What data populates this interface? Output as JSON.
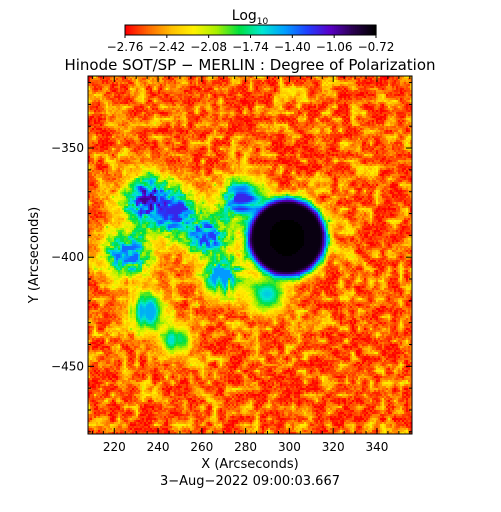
{
  "chart_data": {
    "type": "heatmap",
    "title": "Hinode SOT/SP − MERLIN : Degree of Polarization",
    "subtitle": "3−Aug−2022 09:00:03.667",
    "xlabel": "X (Arcseconds)",
    "ylabel": "Y (Arcseconds)",
    "xlim": [
      208,
      356
    ],
    "ylim": [
      -481,
      -317
    ],
    "x_ticks": [
      220,
      240,
      260,
      280,
      300,
      320,
      340
    ],
    "x_tick_labels": [
      "220",
      "240",
      "260",
      "280",
      "300",
      "320",
      "340"
    ],
    "y_ticks": [
      -350,
      -400,
      -450
    ],
    "y_tick_labels": [
      "−350",
      "−400",
      "−450"
    ],
    "colorbar": {
      "label_main": "Log",
      "label_sub": "10",
      "range": [
        -2.76,
        -0.72
      ],
      "tick_values": [
        -2.76,
        -2.42,
        -2.08,
        -1.74,
        -1.4,
        -1.06,
        -0.72
      ],
      "tick_labels": [
        "−2.76",
        "−2.42",
        "−2.08",
        "−1.74",
        "−1.40",
        "−1.06",
        "−0.72"
      ],
      "colors": [
        "#ff0000",
        "#ff6a00",
        "#ffbf00",
        "#fff200",
        "#a8f000",
        "#00e040",
        "#00e8d0",
        "#00a0ff",
        "#2040ff",
        "#5a00c8",
        "#2a0050",
        "#000000"
      ]
    },
    "features": [
      {
        "name": "sunspot",
        "x": 299,
        "y": -391,
        "radius": 15,
        "value": -0.76
      },
      {
        "name": "plage",
        "x": 236,
        "y": -374,
        "spread": 8,
        "value": -1.0
      },
      {
        "name": "plage",
        "x": 248,
        "y": -380,
        "spread": 7,
        "value": -1.2
      },
      {
        "name": "plage",
        "x": 262,
        "y": -390,
        "spread": 7,
        "value": -1.25
      },
      {
        "name": "plage",
        "x": 278,
        "y": -374,
        "spread": 7,
        "value": -1.2
      },
      {
        "name": "plage",
        "x": 226,
        "y": -398,
        "spread": 8,
        "value": -1.35
      },
      {
        "name": "plage",
        "x": 270,
        "y": -408,
        "spread": 7,
        "value": -1.45
      },
      {
        "name": "plage",
        "x": 234,
        "y": -425,
        "spread": 6,
        "value": -1.5
      },
      {
        "name": "plage",
        "x": 248,
        "y": -438,
        "spread": 5,
        "value": -1.6
      },
      {
        "name": "plage",
        "x": 290,
        "y": -417,
        "spread": 6,
        "value": -1.55
      }
    ]
  }
}
